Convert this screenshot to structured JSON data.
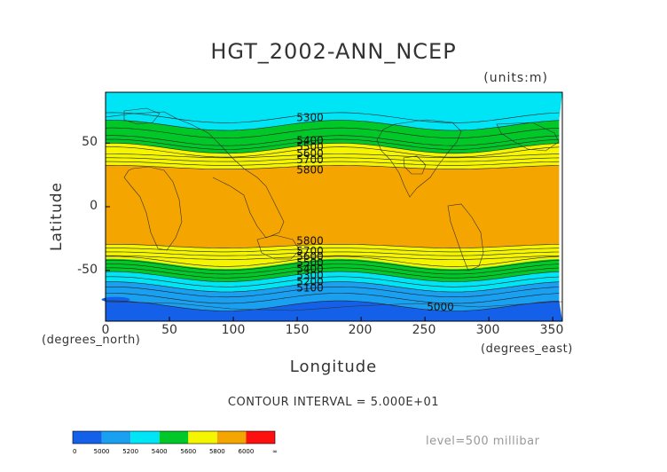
{
  "title": "HGT_2002-ANN_NCEP",
  "units": "(units:m)",
  "ylabel": "Latitude",
  "xlabel": "Longitude",
  "x_unit_label": "(degrees_north)",
  "x_unit_label2": "(degrees_east)",
  "contour_interval": "CONTOUR INTERVAL = 5.000E+01",
  "level": "level=500 millibar",
  "chart_data": {
    "type": "heatmap",
    "variable": "HGT",
    "x_ticks": [
      "0",
      "50",
      "100",
      "150",
      "200",
      "250",
      "300",
      "350"
    ],
    "y_ticks": [
      "50",
      "0",
      "-50"
    ],
    "xlim": [
      0,
      357.5
    ],
    "ylim": [
      -90,
      90
    ],
    "contour_labels": [
      {
        "text": "5300",
        "lon": 130,
        "lat": 70
      },
      {
        "text": "5400",
        "lon": 130,
        "lat": 52
      },
      {
        "text": "5500",
        "lon": 130,
        "lat": 47
      },
      {
        "text": "5600",
        "lon": 130,
        "lat": 42
      },
      {
        "text": "5700",
        "lon": 130,
        "lat": 37
      },
      {
        "text": "5800",
        "lon": 130,
        "lat": 29
      },
      {
        "text": "5800",
        "lon": 130,
        "lat": -27
      },
      {
        "text": "5700",
        "lon": 130,
        "lat": -35
      },
      {
        "text": "5600",
        "lon": 130,
        "lat": -39
      },
      {
        "text": "5500",
        "lon": 130,
        "lat": -44
      },
      {
        "text": "5400",
        "lon": 130,
        "lat": -49
      },
      {
        "text": "5300",
        "lon": 130,
        "lat": -54
      },
      {
        "text": "5200",
        "lon": 130,
        "lat": -59
      },
      {
        "text": "5100",
        "lon": 130,
        "lat": -64
      },
      {
        "text": "5000",
        "lon": 232,
        "lat": -79
      }
    ],
    "bands_nh": [
      {
        "lat_top": 90,
        "lat_bot": 64,
        "color": "#00e5f5",
        "range": "5200-5400"
      },
      {
        "lat_top": 64,
        "lat_bot": 46,
        "color": "#00c828",
        "range": "5400-5600"
      },
      {
        "lat_top": 46,
        "lat_bot": 31,
        "color": "#f5f500",
        "range": "5600-5800"
      },
      {
        "lat_top": 31,
        "lat_bot": -31,
        "color": "#f5a500",
        "range": "5800-6000"
      }
    ],
    "bands_sh": [
      {
        "lat_top": -31,
        "lat_bot": -45,
        "color": "#f5f500",
        "range": "5600-5800"
      },
      {
        "lat_top": -45,
        "lat_bot": -55,
        "color": "#00c828",
        "range": "5400-5600"
      },
      {
        "lat_top": -55,
        "lat_bot": -63,
        "color": "#00e5f5",
        "range": "5200-5400"
      },
      {
        "lat_top": -63,
        "lat_bot": -78,
        "color": "#1aa0f0",
        "range": "5000-5200"
      },
      {
        "lat_top": -78,
        "lat_bot": -90,
        "color": "#1460e8",
        "range": "0-5000"
      }
    ],
    "colorbar": {
      "labels": [
        "0",
        "5000",
        "5200",
        "5400",
        "5600",
        "5800",
        "6000",
        "∞"
      ],
      "colors": [
        "#1460e8",
        "#1aa0f0",
        "#00e5f5",
        "#00c828",
        "#f5f500",
        "#f5a500",
        "#ff1010"
      ]
    }
  }
}
